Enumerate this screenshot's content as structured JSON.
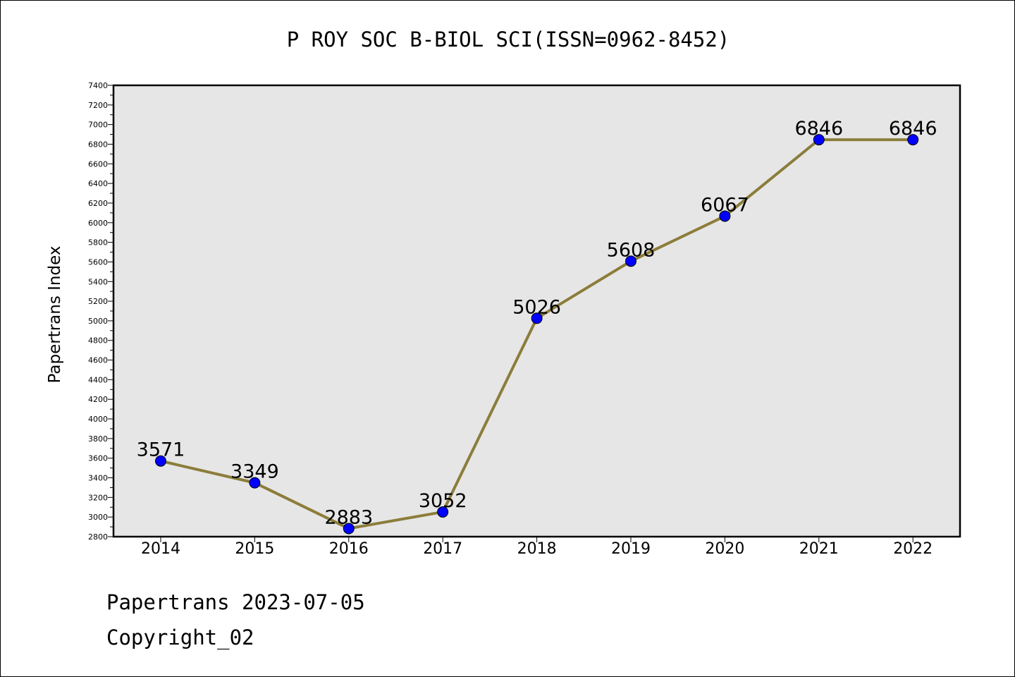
{
  "chart_data": {
    "type": "line",
    "title": "P ROY SOC B-BIOL SCI(ISSN=0962-8452)",
    "xlabel": "",
    "ylabel": "Papertrans Index",
    "categories": [
      "2014",
      "2015",
      "2016",
      "2017",
      "2018",
      "2019",
      "2020",
      "2021",
      "2022"
    ],
    "series": [
      {
        "values": [
          3571,
          3349,
          2883,
          3052,
          5026,
          5608,
          6067,
          6846,
          6846
        ]
      }
    ],
    "data_labels": [
      "3571",
      "3349",
      "2883",
      "3052",
      "5026",
      "5608",
      "6067",
      "6846",
      "6846"
    ],
    "ylim": [
      2800,
      7400
    ],
    "y_major_step": 200,
    "y_minor_step": 100,
    "y_tick_labels": [
      "2800",
      "3000",
      "3200",
      "3400",
      "3600",
      "3800",
      "4000",
      "4200",
      "4400",
      "4600",
      "4800",
      "5000",
      "5200",
      "5400",
      "5600",
      "5800",
      "6000",
      "6200",
      "6400",
      "6600",
      "6800",
      "7000",
      "7200",
      "7400"
    ],
    "grid": false,
    "legend": "none",
    "colors": {
      "line": "#8b7d3a",
      "marker": "#0000ff",
      "plot_background": "#e6e6e6"
    }
  },
  "footer": {
    "date_line": "Papertrans 2023-07-05",
    "copyright": "Copyright_02"
  }
}
